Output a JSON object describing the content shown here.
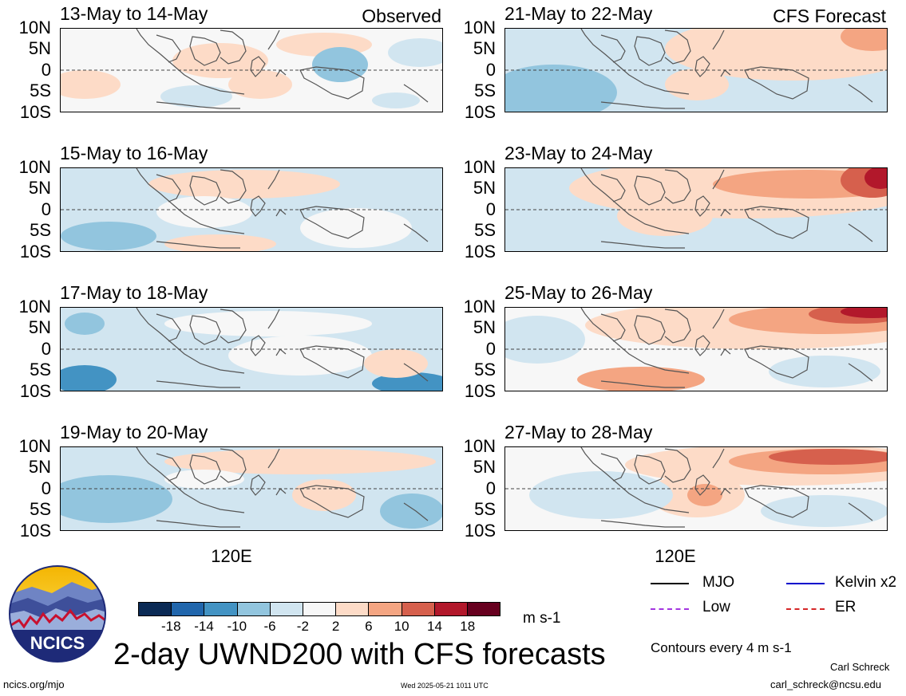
{
  "observed_label": "Observed",
  "forecast_label": "CFS Forecast",
  "lat_labels": [
    "10N",
    "5N",
    "0",
    "5S",
    "10S"
  ],
  "lon_label": "120E",
  "panels": [
    {
      "title": "13-May to 14-May",
      "style": "obs1"
    },
    {
      "title": "15-May to 16-May",
      "style": "obs2"
    },
    {
      "title": "17-May to 18-May",
      "style": "obs3"
    },
    {
      "title": "19-May to 20-May",
      "style": "obs4"
    },
    {
      "title": "21-May to 22-May",
      "style": "fc1"
    },
    {
      "title": "23-May to 24-May",
      "style": "fc2"
    },
    {
      "title": "25-May to 26-May",
      "style": "fc3"
    },
    {
      "title": "27-May to 28-May",
      "style": "fc4"
    }
  ],
  "colorbar": {
    "labels": [
      "-18",
      "-14",
      "-10",
      "-6",
      "-2",
      "2",
      "6",
      "10",
      "14",
      "18"
    ],
    "colors": [
      "#0b2a55",
      "#2166ac",
      "#4393c3",
      "#92c5de",
      "#d1e5f0",
      "#f7f7f7",
      "#fddbc7",
      "#f4a582",
      "#d6604d",
      "#b2182b",
      "#67001f"
    ],
    "units": "m s-1"
  },
  "legend": {
    "items": [
      {
        "label": "MJO",
        "color": "#000000"
      },
      {
        "label": "Kelvin x2",
        "color": "#0000cc"
      },
      {
        "label": "Low",
        "color": "#a335e0"
      },
      {
        "label": "ER",
        "color": "#d62728"
      }
    ],
    "contours_note": "Contours every 4 m s-1"
  },
  "logo_text": "NCICS",
  "main_title": "2-day UWND200 with CFS forecasts",
  "footer": {
    "url": "ncics.org/mjo",
    "timestamp": "Wed 2025-05-21 1011 UTC",
    "author": "Carl Schreck",
    "email": "carl_schreck@ncsu.edu"
  }
}
